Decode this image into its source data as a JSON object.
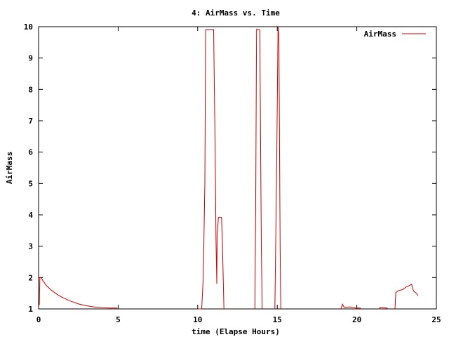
{
  "chart_data": {
    "type": "line",
    "title": "4: AirMass vs. Time",
    "xlabel": "time (Elapse Hours)",
    "ylabel": "AirMass",
    "xlim": [
      0,
      25
    ],
    "ylim": [
      1,
      10
    ],
    "xticks": [
      "0",
      "5",
      "10",
      "15",
      "20",
      "25"
    ],
    "yticks": [
      "1",
      "2",
      "3",
      "4",
      "5",
      "6",
      "7",
      "8",
      "9",
      "10"
    ],
    "grid": false,
    "legend_position": "top-right",
    "series": [
      {
        "name": "AirMass",
        "color": "#cc0000",
        "points": [
          [
            0.0,
            1.08
          ],
          [
            0.05,
            1.15
          ],
          [
            0.08,
            2.0
          ],
          [
            0.15,
            2.0
          ],
          [
            0.3,
            1.88
          ],
          [
            0.5,
            1.74
          ],
          [
            0.8,
            1.6
          ],
          [
            1.2,
            1.45
          ],
          [
            1.6,
            1.34
          ],
          [
            2.0,
            1.25
          ],
          [
            2.5,
            1.16
          ],
          [
            3.0,
            1.1
          ],
          [
            3.5,
            1.06
          ],
          [
            4.0,
            1.04
          ],
          [
            4.5,
            1.03
          ],
          [
            4.95,
            1.03
          ],
          null,
          [
            10.0,
            1.0
          ],
          [
            10.25,
            1.0
          ],
          [
            10.35,
            2.0
          ],
          [
            10.45,
            5.0
          ],
          [
            10.5,
            9.9
          ],
          [
            11.0,
            9.9
          ],
          [
            11.1,
            6.0
          ],
          [
            11.15,
            3.2
          ],
          [
            11.2,
            1.8
          ],
          [
            11.22,
            3.3
          ],
          [
            11.3,
            3.92
          ],
          [
            11.5,
            3.92
          ],
          [
            11.55,
            3.1
          ],
          [
            11.65,
            1.0
          ],
          null,
          [
            13.6,
            1.0
          ],
          [
            13.65,
            5.0
          ],
          [
            13.7,
            9.92
          ],
          [
            13.9,
            9.9
          ],
          [
            14.0,
            3.0
          ],
          [
            14.05,
            1.0
          ],
          null,
          [
            14.85,
            1.0
          ],
          [
            14.95,
            5.0
          ],
          [
            15.05,
            10.0
          ],
          [
            15.1,
            9.7
          ],
          [
            15.18,
            3.0
          ],
          [
            15.22,
            1.0
          ],
          null,
          [
            19.0,
            1.0
          ],
          [
            19.1,
            1.15
          ],
          [
            19.2,
            1.05
          ],
          [
            19.6,
            1.06
          ],
          [
            19.9,
            1.03
          ],
          [
            20.2,
            1.03
          ],
          [
            20.25,
            1.0
          ],
          null,
          [
            21.4,
            1.0
          ],
          [
            21.45,
            1.04
          ],
          [
            21.9,
            1.03
          ],
          [
            21.95,
            1.0
          ],
          null,
          [
            22.4,
            1.0
          ],
          [
            22.45,
            1.52
          ],
          [
            22.6,
            1.58
          ],
          [
            22.9,
            1.62
          ],
          [
            23.1,
            1.7
          ],
          [
            23.3,
            1.74
          ],
          [
            23.45,
            1.79
          ],
          [
            23.5,
            1.65
          ],
          [
            23.6,
            1.55
          ],
          [
            23.75,
            1.5
          ],
          [
            23.85,
            1.42
          ]
        ]
      }
    ]
  }
}
